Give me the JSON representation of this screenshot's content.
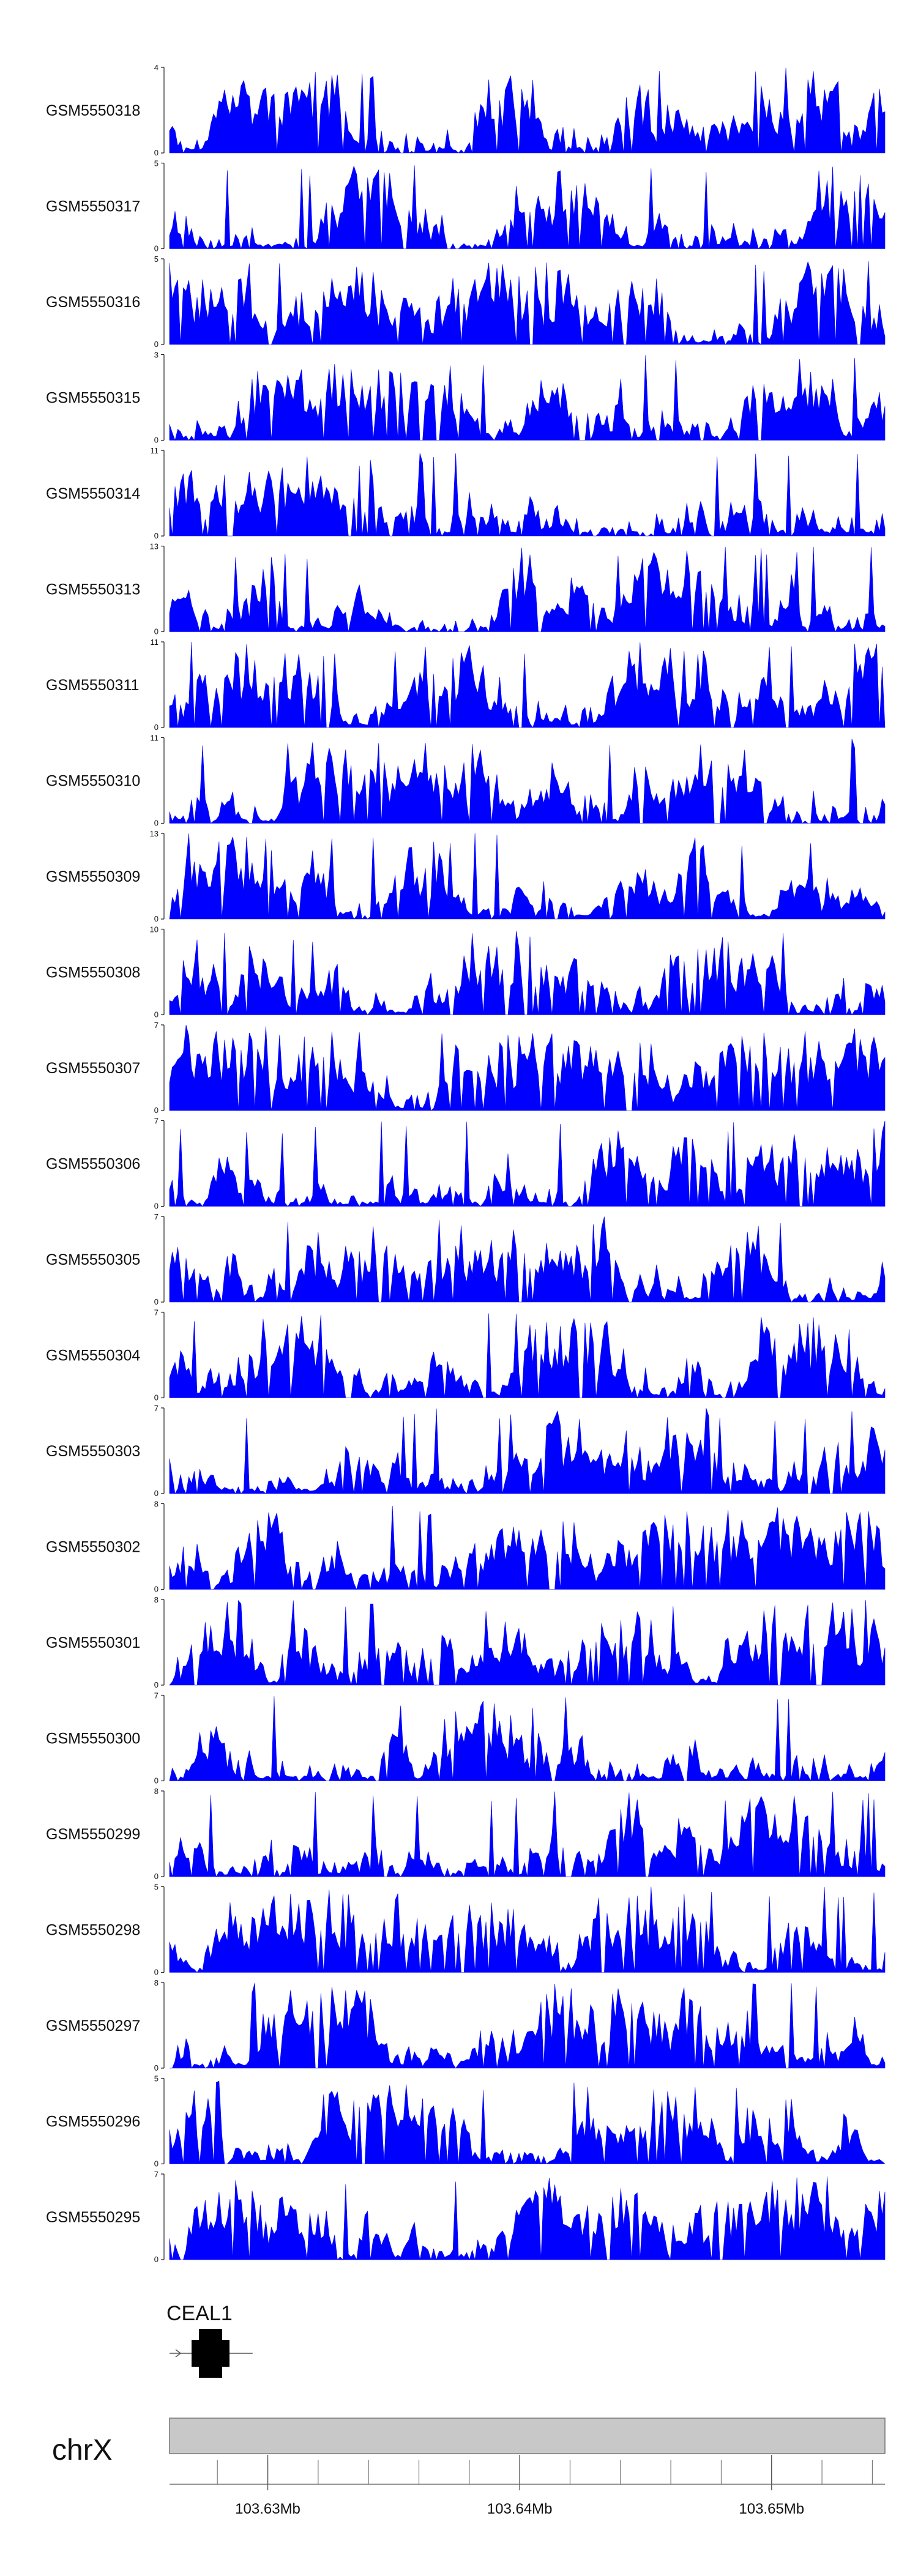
{
  "chart_data": {
    "type": "area",
    "chromosome": "chrX",
    "xlim": [
      103.6261,
      103.6545
    ],
    "x_ticks": [
      {
        "value": 103.63,
        "label": "103.63Mb"
      },
      {
        "value": 103.64,
        "label": "103.64Mb"
      },
      {
        "value": 103.65,
        "label": "103.65Mb"
      }
    ],
    "gene": {
      "name": "CEAL1",
      "start": 103.6261,
      "end": 103.6294,
      "strand": "+"
    },
    "fill_color": "#0000ff",
    "tracks": [
      {
        "label": "GSM5550318",
        "ymax": 4,
        "ymin_label": "0",
        "ymax_label": "4",
        "seed": 318
      },
      {
        "label": "GSM5550317",
        "ymax": 5,
        "ymin_label": "0",
        "ymax_label": "5",
        "seed": 317
      },
      {
        "label": "GSM5550316",
        "ymax": 5,
        "ymin_label": "0",
        "ymax_label": "5",
        "seed": 316
      },
      {
        "label": "GSM5550315",
        "ymax": 3,
        "ymin_label": "0",
        "ymax_label": "3",
        "seed": 315
      },
      {
        "label": "GSM5550314",
        "ymax": 11,
        "ymin_label": "0",
        "ymax_label": "11",
        "seed": 314
      },
      {
        "label": "GSM5550313",
        "ymax": 13,
        "ymin_label": "0",
        "ymax_label": "13",
        "seed": 313
      },
      {
        "label": "GSM5550311",
        "ymax": 11,
        "ymin_label": "0",
        "ymax_label": "11",
        "seed": 311
      },
      {
        "label": "GSM5550310",
        "ymax": 11,
        "ymin_label": "0",
        "ymax_label": "11",
        "seed": 310
      },
      {
        "label": "GSM5550309",
        "ymax": 13,
        "ymin_label": "0",
        "ymax_label": "13",
        "seed": 309
      },
      {
        "label": "GSM5550308",
        "ymax": 10,
        "ymin_label": "0",
        "ymax_label": "10",
        "seed": 308
      },
      {
        "label": "GSM5550307",
        "ymax": 7,
        "ymin_label": "0",
        "ymax_label": "7",
        "seed": 307
      },
      {
        "label": "GSM5550306",
        "ymax": 7,
        "ymin_label": "0",
        "ymax_label": "7",
        "seed": 306
      },
      {
        "label": "GSM5550305",
        "ymax": 7,
        "ymin_label": "0",
        "ymax_label": "7",
        "seed": 305
      },
      {
        "label": "GSM5550304",
        "ymax": 7,
        "ymin_label": "0",
        "ymax_label": "7",
        "seed": 304
      },
      {
        "label": "GSM5550303",
        "ymax": 7,
        "ymin_label": "0",
        "ymax_label": "7",
        "seed": 303
      },
      {
        "label": "GSM5550302",
        "ymax": 8,
        "ymin_label": "0",
        "ymax_label": "8",
        "seed": 302
      },
      {
        "label": "GSM5550301",
        "ymax": 8,
        "ymin_label": "0",
        "ymax_label": "8",
        "seed": 301
      },
      {
        "label": "GSM5550300",
        "ymax": 7,
        "ymin_label": "0",
        "ymax_label": "7",
        "seed": 300
      },
      {
        "label": "GSM5550299",
        "ymax": 8,
        "ymin_label": "0",
        "ymax_label": "8",
        "seed": 299
      },
      {
        "label": "GSM5550298",
        "ymax": 5,
        "ymin_label": "0",
        "ymax_label": "5",
        "seed": 298
      },
      {
        "label": "GSM5550297",
        "ymax": 8,
        "ymin_label": "0",
        "ymax_label": "8",
        "seed": 297
      },
      {
        "label": "GSM5550296",
        "ymax": 5,
        "ymin_label": "0",
        "ymax_label": "5",
        "seed": 296
      },
      {
        "label": "GSM5550295",
        "ymax": 7,
        "ymin_label": "0",
        "ymax_label": "7",
        "seed": 295
      }
    ]
  }
}
